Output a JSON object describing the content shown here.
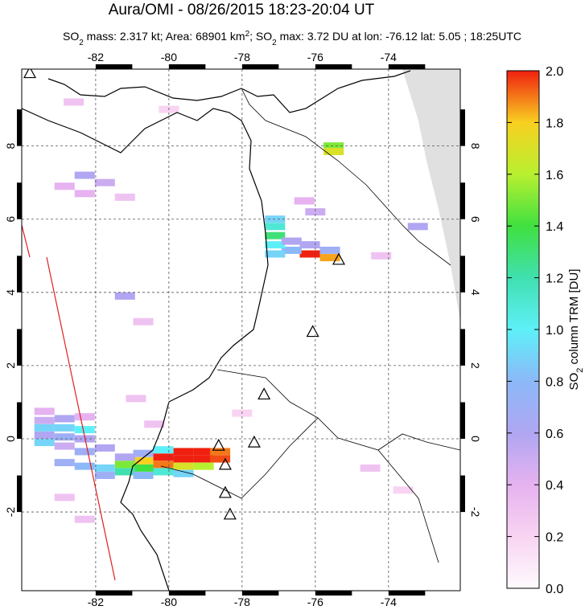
{
  "header": {
    "title": "Aura/OMI - 08/26/2015 18:23-20:04 UT",
    "subtitle": [
      "SO",
      "2",
      " mass: 2.317 kt; Area: 68901 km",
      "2",
      "; SO",
      "2",
      " max: 3.72 DU at lon: -76.12 lat: 5.05 ; 18:25UTC"
    ]
  },
  "map": {
    "xlim": [
      -84.02,
      -72.04
    ],
    "ylim": [
      -4.15,
      10.1
    ],
    "xticks": [
      -82,
      -80,
      -78,
      -76,
      -74
    ],
    "yticks": [
      -2,
      0,
      2,
      4,
      6,
      8
    ],
    "grid": true,
    "volcanoes": {
      "lon": [
        -75.36,
        -76.07,
        -77.4,
        -77.67,
        -78.64,
        -78.46,
        -78.46,
        -78.33,
        -83.8
      ],
      "lat": [
        4.9,
        2.93,
        1.22,
        -0.09,
        -0.18,
        -0.7,
        -1.47,
        -2.06,
        10.0
      ]
    },
    "so2": {
      "lon": [
        -79.6,
        -79.05,
        -78.6,
        -80.15,
        -79.6,
        -79.05,
        -78.6,
        -80.7,
        -80.15,
        -79.6,
        -79.05,
        -81.2,
        -80.7,
        -80.15,
        -79.6,
        -81.2,
        -81.75,
        -82.3,
        -80.7,
        -81.75,
        -82.85,
        -80.15,
        -80.7,
        -81.2,
        -83.4,
        -82.85,
        -82.3,
        -83.4,
        -82.85,
        -82.3,
        -83.4,
        -82.85,
        -83.4,
        -82.85,
        -82.3,
        -81.75,
        -83.4,
        -82.3,
        -76.15,
        -75.6,
        -76.65,
        -77.1,
        -77.1,
        -77.1,
        -77.1,
        -76.65,
        -75.6,
        -76.15,
        -77.1,
        -75.5,
        -75.5,
        -82.3,
        -81.75,
        -82.85,
        -82.3,
        -81.2,
        -81.2,
        -80.7,
        -76.0,
        -76.3,
        -74.2,
        -73.2,
        -80.4,
        -80.9,
        -78.0,
        -82.85,
        -82.3,
        -73.6,
        -80.0,
        -82.6,
        -74.5
      ],
      "lat": [
        -0.35,
        -0.35,
        -0.35,
        -0.5,
        -0.55,
        -0.55,
        -0.55,
        -0.6,
        -0.7,
        -0.75,
        -0.75,
        -0.7,
        -0.8,
        -0.9,
        -0.95,
        -0.9,
        -0.8,
        -0.75,
        -1.0,
        -1.0,
        -0.65,
        -0.3,
        -0.4,
        -0.5,
        0.3,
        0.3,
        0.25,
        0.1,
        0.05,
        0.0,
        0.5,
        0.55,
        -0.1,
        -0.2,
        -0.35,
        -0.25,
        0.75,
        0.6,
        5.05,
        4.95,
        5.15,
        5.3,
        5.55,
        5.8,
        6.0,
        5.4,
        5.15,
        5.3,
        5.05,
        8.0,
        7.85,
        7.2,
        7.0,
        6.9,
        6.7,
        6.6,
        3.9,
        3.2,
        6.2,
        6.5,
        5.0,
        5.8,
        0.4,
        1.1,
        0.7,
        -1.6,
        -2.2,
        -1.4,
        9.0,
        9.2,
        -0.8
      ],
      "values": [
        2.0,
        2.0,
        1.9,
        2.0,
        2.0,
        2.0,
        1.95,
        1.8,
        1.9,
        1.7,
        1.6,
        1.5,
        1.4,
        1.1,
        0.9,
        1.2,
        0.9,
        0.8,
        0.8,
        0.7,
        0.7,
        1.0,
        0.7,
        0.6,
        0.9,
        0.9,
        1.0,
        0.6,
        0.7,
        0.6,
        0.5,
        0.6,
        0.9,
        0.5,
        0.7,
        0.6,
        0.4,
        0.4,
        2.0,
        1.85,
        0.8,
        1.0,
        1.3,
        1.1,
        0.9,
        0.6,
        0.7,
        0.6,
        0.9,
        1.5,
        1.7,
        0.6,
        0.5,
        0.4,
        0.4,
        0.3,
        0.6,
        0.3,
        0.5,
        0.4,
        0.3,
        0.6,
        0.3,
        0.3,
        0.2,
        0.3,
        0.3,
        0.2,
        0.2,
        0.3,
        0.3
      ]
    }
  },
  "colorbar": {
    "label": [
      "SO",
      "2",
      " column TRM [DU]"
    ],
    "clim": [
      0,
      2
    ],
    "ticks": [
      {
        "value": 0,
        "label": "0.0"
      },
      0.2,
      0.4,
      0.6,
      0.8,
      {
        "value": 1,
        "label": "1.0"
      },
      1.2,
      1.4,
      1.6,
      1.8,
      {
        "value": 2,
        "label": "2.0"
      }
    ],
    "colors": [
      "#fefafe",
      "#f8d4f2",
      "#e6b2f0",
      "#b0a6f2",
      "#8cb8f8",
      "#5ef0f8",
      "#40e0b0",
      "#40e040",
      "#b8f030",
      "#f8d020",
      "#f02010"
    ]
  }
}
